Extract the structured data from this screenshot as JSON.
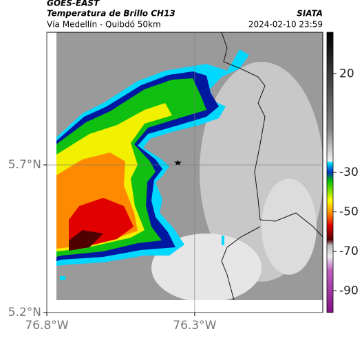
{
  "header": {
    "title": "GOES-EAST",
    "subtitle": "Temperatura de Brillo CH13",
    "location": "Vía Medellín - Quibdó 50km",
    "source": "SIATA",
    "datetime": "2024-02-10 23:59"
  },
  "map": {
    "xlim": [
      -76.8,
      -75.867
    ],
    "ylim": [
      5.2,
      6.149
    ],
    "xticks": [
      {
        "value": -76.8,
        "label": "76.8°W"
      },
      {
        "value": -76.3,
        "label": "76.3°W"
      }
    ],
    "yticks": [
      {
        "value": 5.7,
        "label": "5.7°N"
      },
      {
        "value": 5.2,
        "label": "5.2°N"
      }
    ],
    "grid": true
  },
  "colorbar": {
    "clim": [
      -101,
      41
    ],
    "ticks": [
      20,
      -30,
      -50,
      -70,
      -90
    ]
  }
}
